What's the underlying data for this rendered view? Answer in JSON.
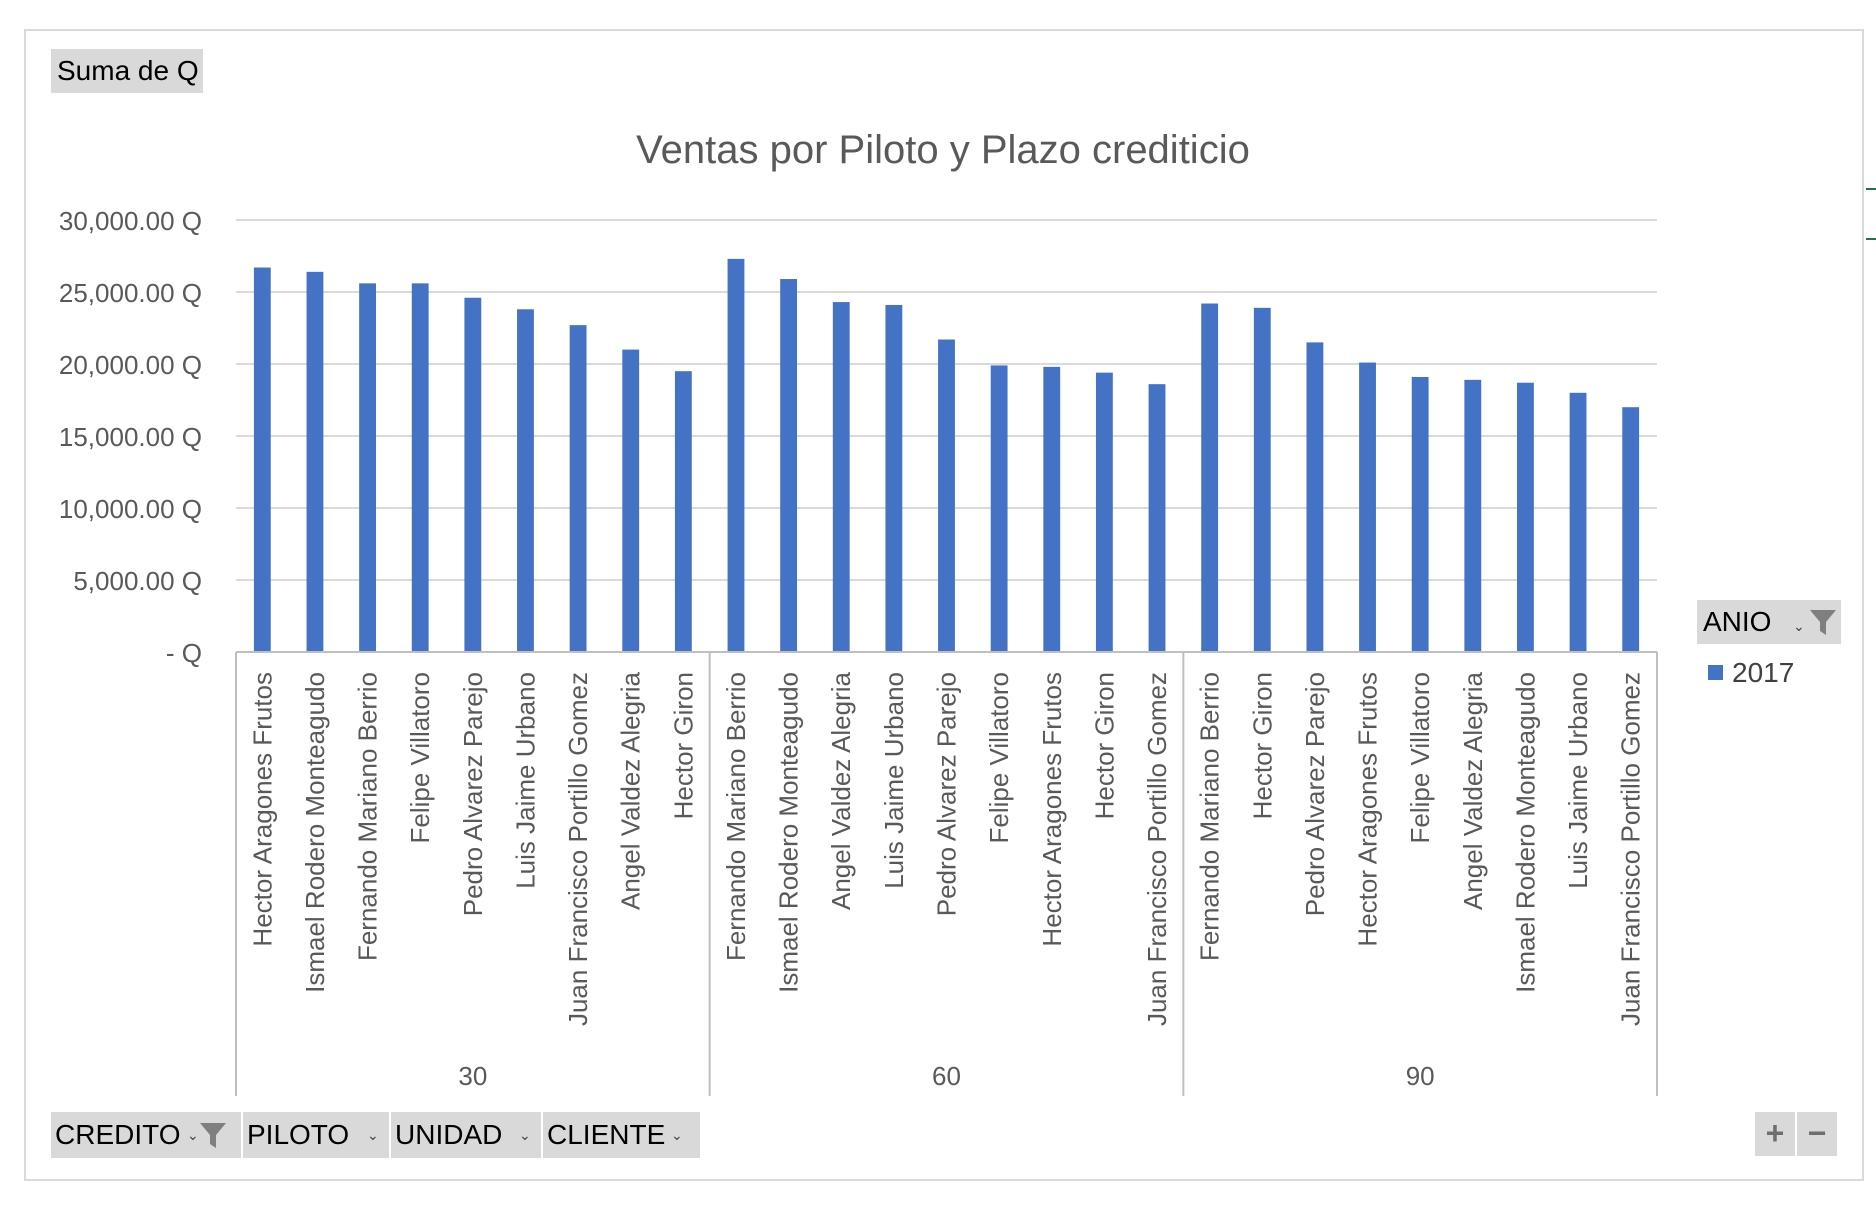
{
  "pivot": {
    "value_field": "Suma de Q",
    "legend_field": "ANIO",
    "axis_fields": [
      "CREDITO",
      "PILOTO",
      "UNIDAD",
      "CLIENTE"
    ]
  },
  "icons": {
    "filter": "funnel-icon",
    "dropdown": "dropdown-arrow-icon",
    "zoom_in": "plus-icon",
    "zoom_out": "minus-icon"
  },
  "controls": {
    "zoom_in": "+",
    "zoom_out": "−"
  },
  "chart_data": {
    "type": "bar",
    "title": "Ventas por Piloto y Plazo crediticio",
    "xlabel": "",
    "ylabel": "",
    "ylim": [
      0,
      30000
    ],
    "yticks": [
      {
        "value": 30000,
        "label": "30,000.00 Q"
      },
      {
        "value": 25000,
        "label": "25,000.00 Q"
      },
      {
        "value": 20000,
        "label": "20,000.00 Q"
      },
      {
        "value": 15000,
        "label": "15,000.00 Q"
      },
      {
        "value": 10000,
        "label": "10,000.00 Q"
      },
      {
        "value": 5000,
        "label": "5,000.00 Q"
      },
      {
        "value": 0,
        "label": "-  Q"
      }
    ],
    "grid": true,
    "legend_position": "right",
    "colors": {
      "series": "#4472c4",
      "grid": "#d9d9d9",
      "axis": "#bfbfbf"
    },
    "groups": [
      {
        "label": "30",
        "categories": [
          "Hector Aragones Frutos",
          "Ismael Rodero Monteagudo",
          "Fernando Mariano Berrio",
          "Felipe Villatoro",
          "Pedro Alvarez Parejo",
          "Luis Jaime Urbano",
          "Juan Francisco Portillo Gomez",
          "Angel Valdez Alegria",
          "Hector Giron"
        ],
        "values": [
          26700,
          26400,
          25600,
          25600,
          24600,
          23800,
          22700,
          21000,
          19500
        ]
      },
      {
        "label": "60",
        "categories": [
          "Fernando Mariano Berrio",
          "Ismael Rodero Monteagudo",
          "Angel Valdez Alegria",
          "Luis Jaime Urbano",
          "Pedro Alvarez Parejo",
          "Felipe Villatoro",
          "Hector Aragones Frutos",
          "Hector Giron",
          "Juan Francisco Portillo Gomez"
        ],
        "values": [
          27300,
          25900,
          24300,
          24100,
          21700,
          19900,
          19800,
          19400,
          18600
        ]
      },
      {
        "label": "90",
        "categories": [
          "Fernando Mariano Berrio",
          "Hector Giron",
          "Pedro Alvarez Parejo",
          "Hector Aragones Frutos",
          "Felipe Villatoro",
          "Angel Valdez Alegria",
          "Ismael Rodero Monteagudo",
          "Luis Jaime Urbano",
          "Juan Francisco Portillo Gomez"
        ],
        "values": [
          24200,
          23900,
          21500,
          20100,
          19100,
          18900,
          18700,
          18000,
          17000
        ]
      }
    ],
    "series": [
      {
        "name": "2017"
      }
    ]
  }
}
